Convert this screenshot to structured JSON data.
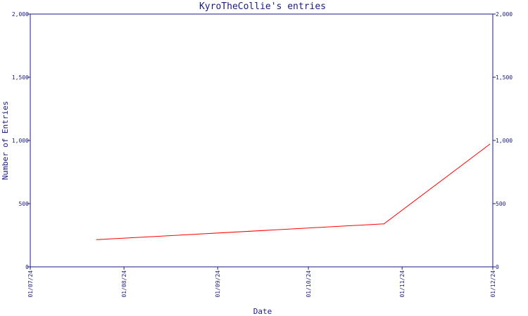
{
  "chart_data": {
    "type": "line",
    "title": "KyroTheCollie's entries",
    "xlabel": "Date",
    "ylabel": "Number of Entries",
    "x_tick_labels": [
      "01/07/24",
      "01/08/24",
      "01/09/24",
      "01/10/24",
      "01/11/24",
      "01/12/24"
    ],
    "x_tick_dates": [
      "2024-07-01",
      "2024-08-01",
      "2024-09-01",
      "2024-10-01",
      "2024-11-01",
      "2024-12-01"
    ],
    "y_tick_labels": [
      "0",
      "500",
      "1,000",
      "1,500",
      "2,000"
    ],
    "y_tick_values": [
      0,
      500,
      1000,
      1500,
      2000
    ],
    "xlim": [
      "2024-07-01",
      "2024-12-01"
    ],
    "ylim": [
      0,
      2000
    ],
    "grid": false,
    "series": [
      {
        "color": "#ff0000",
        "points": [
          {
            "x": "2024-07-23",
            "y": 215
          },
          {
            "x": "2024-10-26",
            "y": 340
          },
          {
            "x": "2024-11-30",
            "y": 970
          }
        ]
      }
    ]
  }
}
